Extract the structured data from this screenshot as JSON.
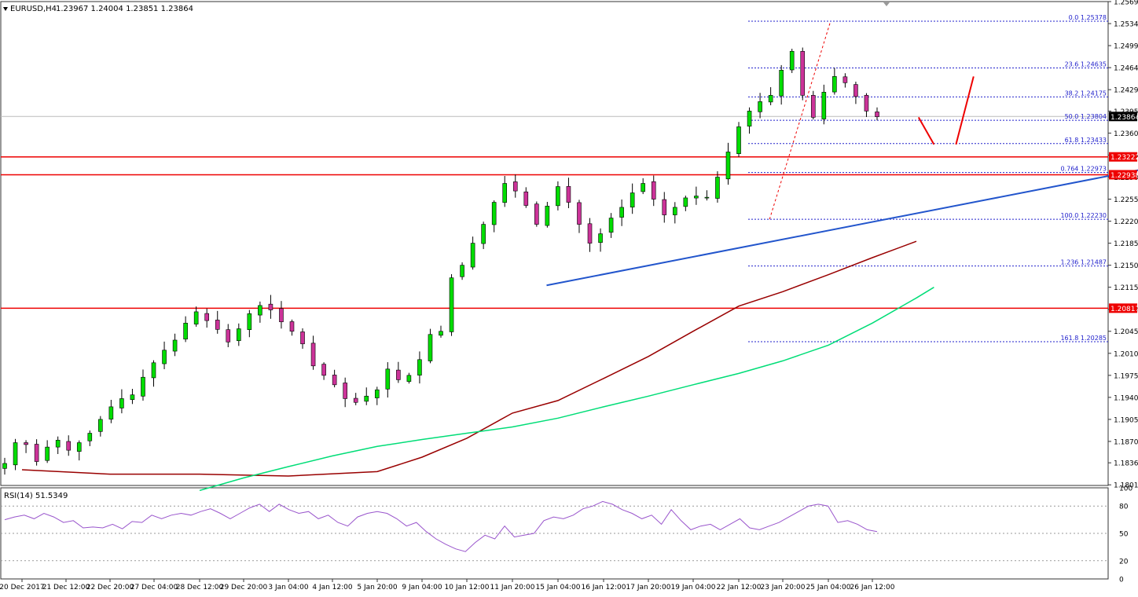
{
  "header": {
    "symbol": "EURUSD,H4",
    "ohlc": "1.23967 1.24004 1.23851 1.23864"
  },
  "rsi_header": "RSI(14) 51.5349",
  "colors": {
    "bull": "#00dd00",
    "bear": "#cc3399",
    "ma_slow": "#990000",
    "ma_fast": "#00dd77",
    "trendline": "#2255cc",
    "resistance": "#ee0000",
    "fib": "#2222cc",
    "rsi": "#9955cc",
    "arrow": "#ee0000"
  },
  "chart_data": [
    {
      "type": "candlestick",
      "title": "EURUSD,H4",
      "ylim": [
        1.18,
        1.2569
      ],
      "y_ticks": [
        "1.25690",
        "1.25340",
        "1.24990",
        "1.24640",
        "1.24290",
        "1.23950",
        "1.23600",
        "1.23250",
        "1.22900",
        "1.22550",
        "1.22200",
        "1.21850",
        "1.21500",
        "1.21150",
        "1.20800",
        "1.20450",
        "1.20100",
        "1.19750",
        "1.19400",
        "1.19050",
        "1.18700",
        "1.18360",
        "1.18010"
      ],
      "x_ticks": [
        "20 Dec 2017",
        "21 Dec 12:00",
        "22 Dec 20:00",
        "27 Dec 04:00",
        "28 Dec 12:00",
        "29 Dec 20:00",
        "3 Jan 04:00",
        "4 Jan 12:00",
        "5 Jan 20:00",
        "9 Jan 04:00",
        "10 Jan 12:00",
        "11 Jan 20:00",
        "15 Jan 04:00",
        "16 Jan 12:00",
        "17 Jan 20:00",
        "19 Jan 04:00",
        "22 Jan 12:00",
        "23 Jan 20:00",
        "25 Jan 04:00",
        "26 Jan 12:00"
      ],
      "close_path": [
        1.1835,
        1.1868,
        1.1865,
        1.1838,
        1.1861,
        1.1872,
        1.1856,
        1.1868,
        1.1883,
        1.1905,
        1.1925,
        1.1938,
        1.1944,
        1.1972,
        1.1995,
        1.2015,
        1.2031,
        1.2058,
        1.2076,
        1.2062,
        1.2048,
        1.2028,
        1.2049,
        1.2073,
        1.2086,
        1.2079,
        1.206,
        1.2045,
        1.2025,
        1.199,
        1.1975,
        1.196,
        1.1938,
        1.1932,
        1.1942,
        1.1952,
        1.1985,
        1.1968,
        1.1975,
        1.2,
        1.204,
        1.2045,
        1.213,
        1.215,
        1.2185,
        1.2215,
        1.225,
        1.228,
        1.2268,
        1.2245,
        1.2215,
        1.2244,
        1.2275,
        1.225,
        1.2215,
        1.2185,
        1.22,
        1.2225,
        1.2242,
        1.2265,
        1.228,
        1.2255,
        1.223,
        1.2242,
        1.2257,
        1.226,
        1.2258,
        1.229,
        1.233,
        1.237,
        1.2395,
        1.241,
        1.242,
        1.246,
        1.249,
        1.242,
        1.2385,
        1.2425,
        1.245,
        1.244,
        1.2418,
        1.2395,
        1.2386
      ],
      "last_price": "1.23864",
      "resistance_lines": [
        "1.23222",
        "1.22938",
        "1.20817"
      ],
      "fibonacci": [
        {
          "label": "0.0",
          "value": "1.25378"
        },
        {
          "label": "23.6",
          "value": "1.24635"
        },
        {
          "label": "38.2",
          "value": "1.24175"
        },
        {
          "label": "50.0",
          "value": "1.23804"
        },
        {
          "label": "61.8",
          "value": "1.23433"
        },
        {
          "label": "0.764",
          "value": "1.22973"
        },
        {
          "label": "100.0",
          "value": "1.22230"
        },
        {
          "label": "1.236",
          "value": "1.21487"
        },
        {
          "label": "161.8",
          "value": "1.20285"
        }
      ],
      "trendline": [
        [
          11.75,
          1.2118
        ],
        [
          26.8,
          1.2325
        ]
      ],
      "ma_slow_points": [
        [
          0,
          1.1825
        ],
        [
          2,
          1.1818
        ],
        [
          4,
          1.1818
        ],
        [
          6,
          1.1815
        ],
        [
          8,
          1.1822
        ],
        [
          9,
          1.1845
        ],
        [
          10,
          1.1875
        ],
        [
          11,
          1.1915
        ],
        [
          12,
          1.1935
        ],
        [
          13,
          1.197
        ],
        [
          14,
          1.2005
        ],
        [
          15,
          1.2045
        ],
        [
          16,
          1.2085
        ],
        [
          17,
          1.2108
        ],
        [
          18,
          1.2135
        ],
        [
          19,
          1.2162
        ],
        [
          20,
          1.2188
        ]
      ],
      "ma_fast_points": [
        [
          4,
          1.1792
        ],
        [
          5,
          1.1812
        ],
        [
          6,
          1.183
        ],
        [
          7,
          1.1847
        ],
        [
          8,
          1.1862
        ],
        [
          9,
          1.1873
        ],
        [
          10,
          1.1883
        ],
        [
          11,
          1.1893
        ],
        [
          12,
          1.1907
        ],
        [
          13,
          1.1925
        ],
        [
          14,
          1.1942
        ],
        [
          15,
          1.196
        ],
        [
          16,
          1.1978
        ],
        [
          17,
          1.1998
        ],
        [
          18,
          1.2023
        ],
        [
          19,
          1.2058
        ],
        [
          20,
          1.2098
        ],
        [
          20.4,
          1.2115
        ]
      ],
      "arrow_points": [
        [
          20.05,
          1.2385
        ],
        [
          20.4,
          1.2342
        ],
        [
          20.9,
          1.2342
        ],
        [
          21.3,
          1.245
        ]
      ]
    },
    {
      "type": "line",
      "title": "RSI(14) 51.5349",
      "ylim": [
        0,
        100
      ],
      "y_ticks": [
        "100",
        "80",
        "50",
        "20",
        "0"
      ],
      "levels": [
        80,
        50,
        20
      ],
      "values": [
        65,
        68,
        70,
        66,
        72,
        68,
        62,
        64,
        56,
        57,
        56,
        60,
        55,
        63,
        62,
        70,
        66,
        70,
        72,
        70,
        74,
        77,
        72,
        66,
        72,
        78,
        82,
        74,
        82,
        76,
        72,
        74,
        66,
        70,
        62,
        58,
        68,
        72,
        74,
        72,
        66,
        58,
        62,
        52,
        44,
        38,
        33,
        30,
        40,
        48,
        44,
        58,
        46,
        48,
        50,
        64,
        68,
        66,
        70,
        77,
        80,
        85,
        82,
        76,
        72,
        66,
        70,
        60,
        76,
        64,
        54,
        58,
        60,
        54,
        60,
        66,
        56,
        54,
        58,
        62,
        68,
        74,
        80,
        82,
        80,
        62,
        64,
        60,
        54,
        52
      ]
    }
  ]
}
